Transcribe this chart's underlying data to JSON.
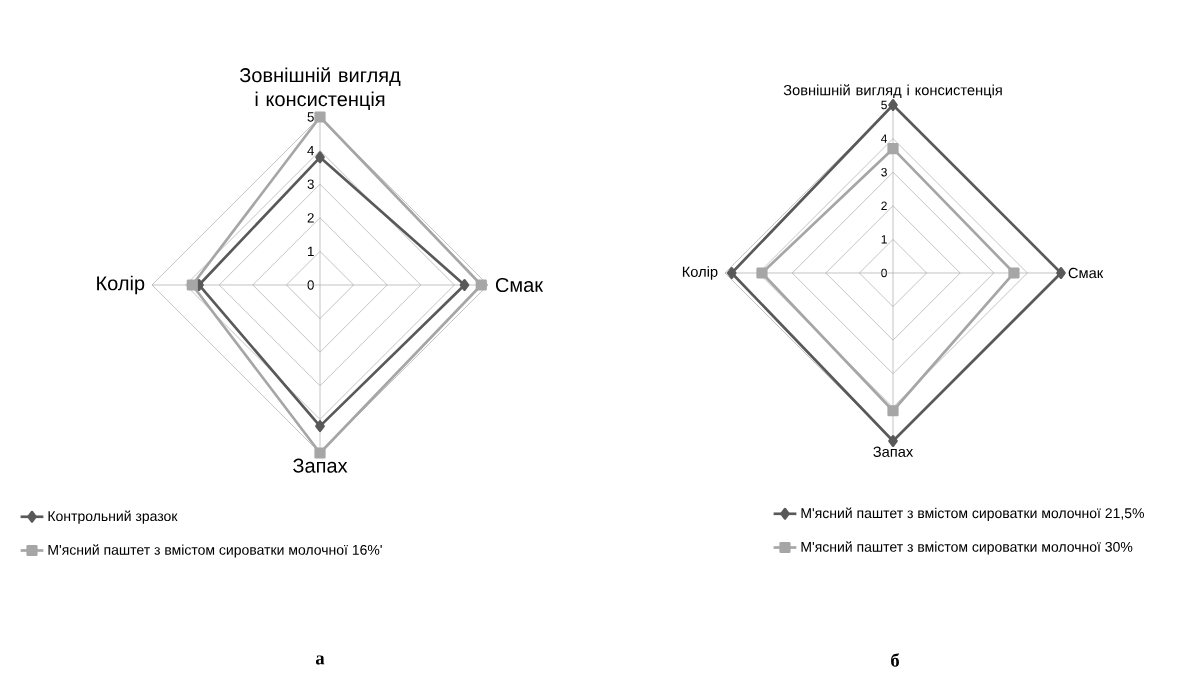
{
  "chart_data": [
    {
      "type": "radar",
      "categories": [
        "Зовнішній вигляд і консистенція",
        "Смак",
        "Запах",
        "Колір"
      ],
      "series": [
        {
          "name": "Контрольний зразок",
          "color": "#595959",
          "marker": "diamond",
          "values": [
            3.8,
            4.3,
            4.2,
            3.6
          ]
        },
        {
          "name": "М'ясний паштет з вмістом сироватки молочної 16%'",
          "color": "#a6a6a6",
          "marker": "square",
          "values": [
            5,
            4.8,
            5,
            3.8
          ]
        }
      ],
      "ylim": [
        0,
        5
      ],
      "yticks": [
        0,
        1,
        2,
        3,
        4,
        5
      ],
      "grid": true,
      "legend": "bottom",
      "annotations": [
        "а"
      ]
    },
    {
      "type": "radar",
      "categories": [
        "Зовнішній вигляд і консистенція",
        "Смак",
        "Запах",
        "Колір"
      ],
      "series": [
        {
          "name": "М'ясний паштет з вмістом сироватки  молочної 21,5%",
          "color": "#595959",
          "marker": "diamond",
          "values": [
            5,
            5,
            5,
            4.8
          ]
        },
        {
          "name": "М'ясний паштет з вмістом сироватки молочної 30%",
          "color": "#a6a6a6",
          "marker": "square",
          "values": [
            3.7,
            3.6,
            4.1,
            3.9
          ]
        }
      ],
      "ylim": [
        0,
        5
      ],
      "yticks": [
        0,
        1,
        2,
        3,
        4,
        5
      ],
      "grid": true,
      "legend": "bottom",
      "annotations": [
        "б"
      ]
    }
  ]
}
